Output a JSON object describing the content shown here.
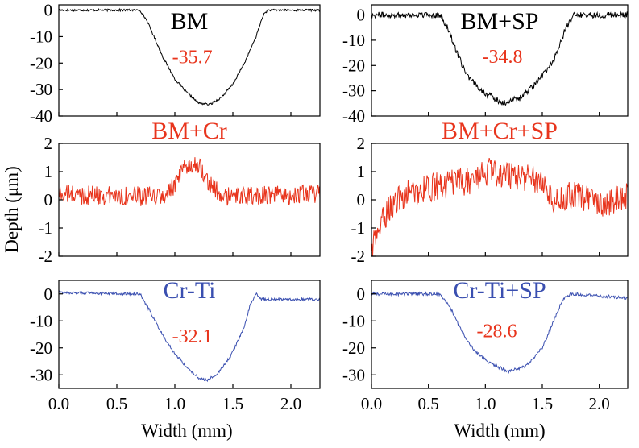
{
  "chart_data": {
    "type": "line",
    "ylabel": "Depth (μm)",
    "xlabel": "Width (mm)",
    "x_ticks": [
      "0.0",
      "0.5",
      "1.0",
      "1.5",
      "2.0"
    ],
    "xlim": [
      0,
      2.25
    ],
    "colors": {
      "black": "#000000",
      "red": "#e8341c",
      "blue": "#3a4fb0"
    },
    "panels": [
      {
        "id": "bm",
        "title": "BM",
        "color": "black",
        "title_color": "black",
        "ylim": [
          -40,
          2
        ],
        "y_ticks": [
          "0",
          "-10",
          "-20",
          "-30",
          "-40"
        ],
        "annotation": "-35.7",
        "annotation_pos": [
          1.15,
          -20
        ],
        "noise": 0.4,
        "profile": [
          [
            0.0,
            0
          ],
          [
            0.7,
            0
          ],
          [
            0.76,
            -4
          ],
          [
            0.82,
            -10
          ],
          [
            0.9,
            -18
          ],
          [
            1.0,
            -26
          ],
          [
            1.1,
            -31
          ],
          [
            1.2,
            -35
          ],
          [
            1.3,
            -35.7
          ],
          [
            1.4,
            -33
          ],
          [
            1.5,
            -28
          ],
          [
            1.6,
            -20
          ],
          [
            1.7,
            -10
          ],
          [
            1.76,
            -2
          ],
          [
            1.8,
            0
          ],
          [
            2.25,
            0
          ]
        ]
      },
      {
        "id": "bm-sp",
        "title": "BM+SP",
        "color": "black",
        "title_color": "black",
        "ylim": [
          -40,
          4
        ],
        "y_ticks": [
          "0",
          "-10",
          "-20",
          "-30",
          "-40"
        ],
        "annotation": "-34.8",
        "annotation_pos": [
          1.15,
          -19
        ],
        "noise": 1.2,
        "profile": [
          [
            0.0,
            0
          ],
          [
            0.6,
            0
          ],
          [
            0.68,
            -6
          ],
          [
            0.75,
            -15
          ],
          [
            0.85,
            -25
          ],
          [
            1.0,
            -31
          ],
          [
            1.15,
            -34.8
          ],
          [
            1.3,
            -33
          ],
          [
            1.45,
            -27
          ],
          [
            1.6,
            -18
          ],
          [
            1.7,
            -6
          ],
          [
            1.78,
            0
          ],
          [
            2.25,
            0
          ]
        ]
      },
      {
        "id": "bm-cr",
        "title": "BM+Cr",
        "color": "red",
        "title_color": "red",
        "ylim": [
          -2,
          2
        ],
        "y_ticks": [
          "2",
          "1",
          "0",
          "-1",
          "-2"
        ],
        "annotation": "",
        "noise": 0.35,
        "profile": [
          [
            0.0,
            0.2
          ],
          [
            0.9,
            0.1
          ],
          [
            1.0,
            0.5
          ],
          [
            1.1,
            1.2
          ],
          [
            1.2,
            1.3
          ],
          [
            1.3,
            0.6
          ],
          [
            1.4,
            0.1
          ],
          [
            2.25,
            0.2
          ]
        ]
      },
      {
        "id": "bm-cr-sp",
        "title": "BM+Cr+SP",
        "color": "red",
        "title_color": "red",
        "ylim": [
          -2,
          2
        ],
        "y_ticks": [
          "2",
          "1",
          "0",
          "-1",
          "-2"
        ],
        "annotation": "",
        "noise": 0.5,
        "profile": [
          [
            0.0,
            -1.8
          ],
          [
            0.05,
            -1.2
          ],
          [
            0.15,
            -0.3
          ],
          [
            0.3,
            0.2
          ],
          [
            0.6,
            0.5
          ],
          [
            0.9,
            0.7
          ],
          [
            1.0,
            1.0
          ],
          [
            1.2,
            0.9
          ],
          [
            1.5,
            0.7
          ],
          [
            1.6,
            0.0
          ],
          [
            1.8,
            0.2
          ],
          [
            2.0,
            -0.2
          ],
          [
            2.25,
            0.2
          ]
        ]
      },
      {
        "id": "cr-ti",
        "title": "Cr-Ti",
        "color": "blue",
        "title_color": "blue",
        "ylim": [
          -35,
          5
        ],
        "y_ticks": [
          "0",
          "-10",
          "-20",
          "-30"
        ],
        "annotation": "-32.1",
        "annotation_pos": [
          1.15,
          -18
        ],
        "noise": 0.5,
        "profile": [
          [
            0.0,
            0.5
          ],
          [
            0.7,
            0
          ],
          [
            0.78,
            -6
          ],
          [
            0.88,
            -14
          ],
          [
            0.98,
            -21
          ],
          [
            1.1,
            -27
          ],
          [
            1.2,
            -31
          ],
          [
            1.28,
            -32.1
          ],
          [
            1.38,
            -29
          ],
          [
            1.48,
            -23
          ],
          [
            1.56,
            -16
          ],
          [
            1.6,
            -12
          ],
          [
            1.65,
            -4
          ],
          [
            1.7,
            0
          ],
          [
            1.75,
            -2
          ],
          [
            2.25,
            -2
          ]
        ]
      },
      {
        "id": "cr-ti-sp",
        "title": "Cr-Ti+SP",
        "color": "blue",
        "title_color": "blue",
        "ylim": [
          -35,
          5
        ],
        "y_ticks": [
          "0",
          "-10",
          "-20",
          "-30"
        ],
        "annotation": "-28.6",
        "annotation_pos": [
          1.1,
          -16
        ],
        "noise": 0.6,
        "profile": [
          [
            0.0,
            0
          ],
          [
            0.6,
            0
          ],
          [
            0.68,
            -4
          ],
          [
            0.78,
            -13
          ],
          [
            0.9,
            -21
          ],
          [
            1.05,
            -26
          ],
          [
            1.2,
            -28.6
          ],
          [
            1.35,
            -27
          ],
          [
            1.5,
            -20
          ],
          [
            1.6,
            -10
          ],
          [
            1.68,
            -2
          ],
          [
            1.75,
            0
          ],
          [
            2.25,
            -1.5
          ]
        ]
      }
    ]
  }
}
